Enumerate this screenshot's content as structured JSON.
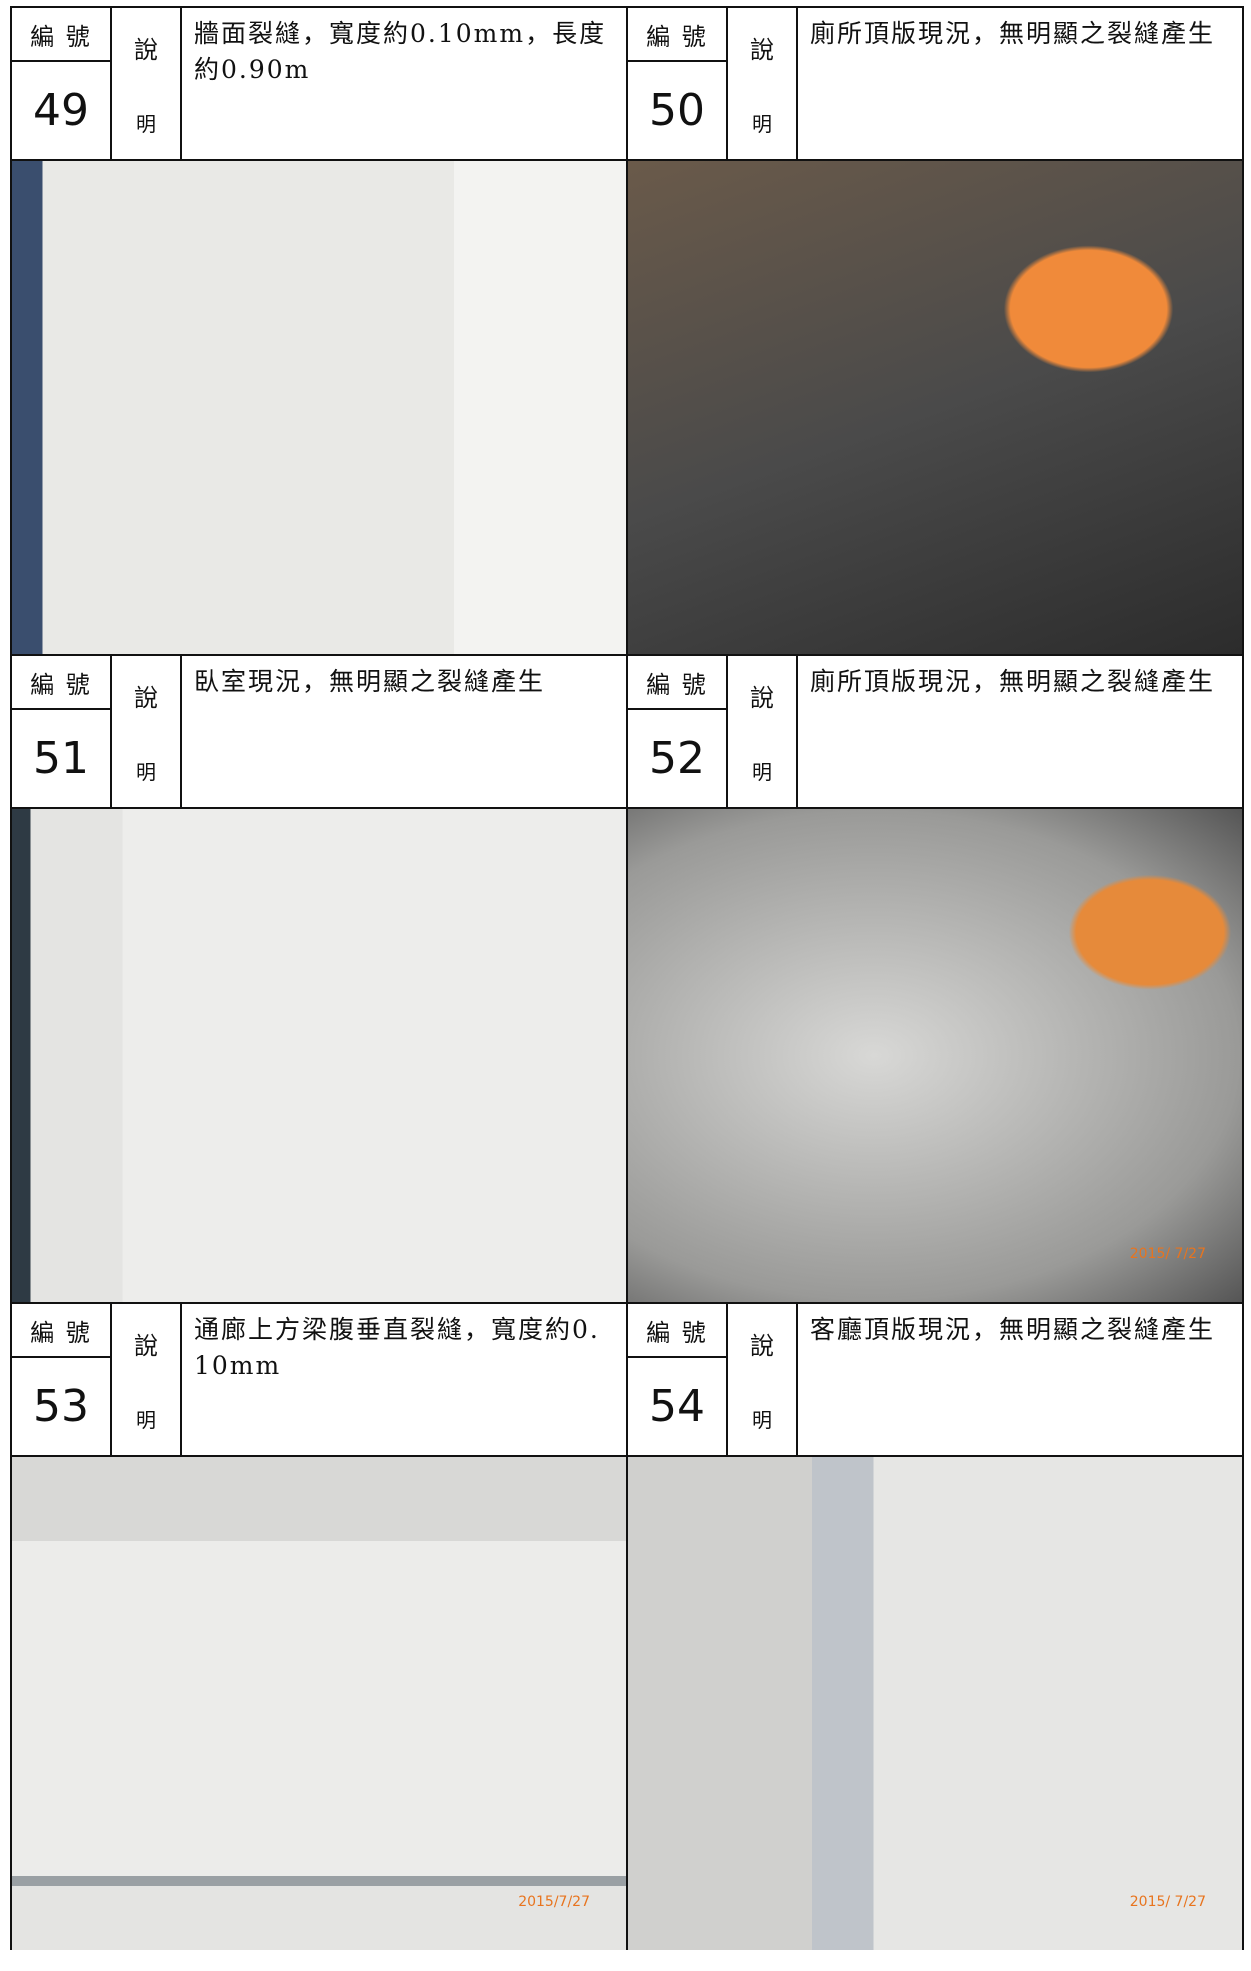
{
  "labels": {
    "number": "編 號",
    "explain_top": "說",
    "explain_bottom": "明"
  },
  "entries": [
    {
      "number": "49",
      "description": "牆面裂縫，寬度約0.10mm，長度約0.90m"
    },
    {
      "number": "50",
      "description": "廁所頂版現況，無明顯之裂縫產生"
    },
    {
      "number": "51",
      "description": "臥室現況，無明顯之裂縫產生"
    },
    {
      "number": "52",
      "description": "廁所頂版現況，無明顯之裂縫產生",
      "photo_stamp": "2015/ 7/27"
    },
    {
      "number": "53",
      "description": "通廊上方梁腹垂直裂縫，寬度約0.10mm",
      "photo_stamp": "2015/7/27"
    },
    {
      "number": "54",
      "description": "客廳頂版現況，無明顯之裂縫產生",
      "photo_stamp": "2015/ 7/27"
    }
  ]
}
